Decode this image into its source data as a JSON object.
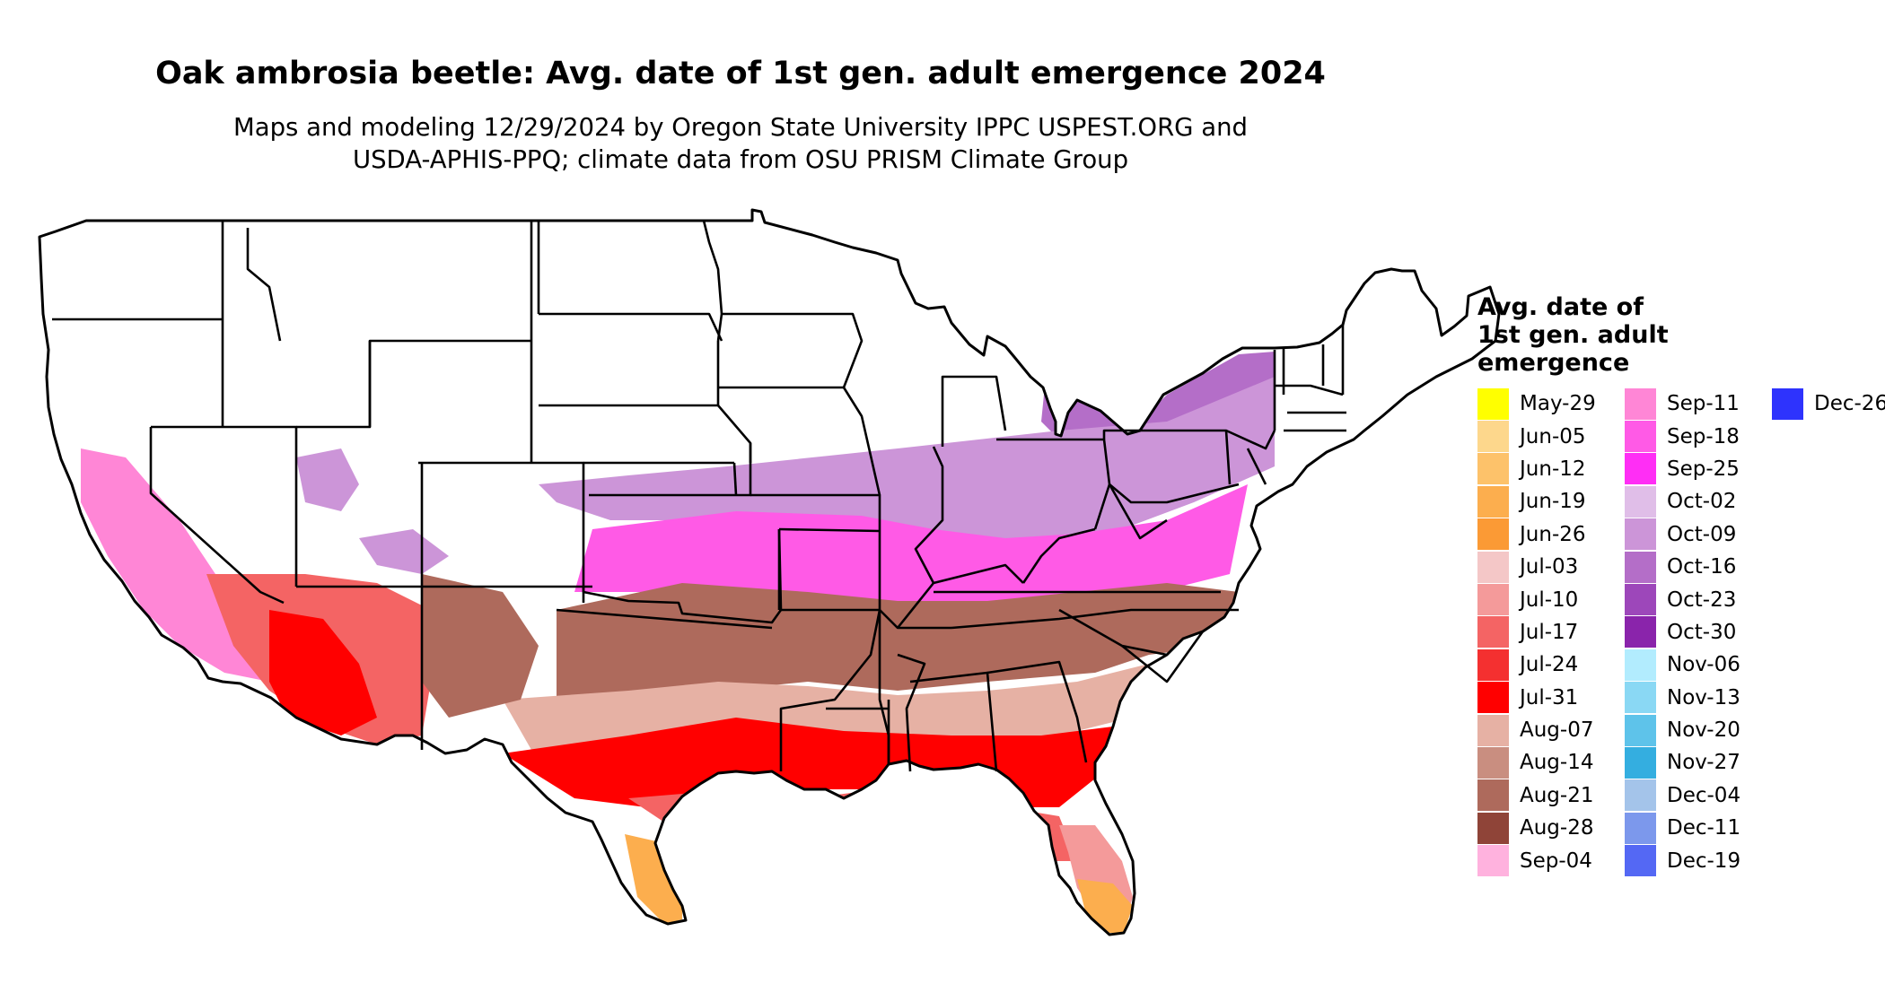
{
  "title": "Oak ambrosia beetle: Avg. date of 1st gen. adult emergence 2024",
  "subtitle_line1": "Maps and modeling 12/29/2024 by Oregon State University IPPC USPEST.ORG and",
  "subtitle_line2": "USDA-APHIS-PPQ; climate data from OSU PRISM Climate Group",
  "legend": {
    "title_lines": [
      "Avg. date of",
      "1st gen. adult",
      "emergence"
    ],
    "columns": [
      [
        {
          "label": "May-29",
          "color": "#ffff00"
        },
        {
          "label": "Jun-05",
          "color": "#fdd78c"
        },
        {
          "label": "Jun-12",
          "color": "#fdc26a"
        },
        {
          "label": "Jun-19",
          "color": "#fcae4e"
        },
        {
          "label": "Jun-26",
          "color": "#fb9a35"
        },
        {
          "label": "Jul-03",
          "color": "#f4c7c7"
        },
        {
          "label": "Jul-10",
          "color": "#f49a9a"
        },
        {
          "label": "Jul-17",
          "color": "#f46464"
        },
        {
          "label": "Jul-24",
          "color": "#f43030"
        },
        {
          "label": "Jul-31",
          "color": "#ff0000"
        },
        {
          "label": "Aug-07",
          "color": "#e6b1a4"
        },
        {
          "label": "Aug-14",
          "color": "#c98e80"
        },
        {
          "label": "Aug-21",
          "color": "#ae6a5c"
        },
        {
          "label": "Aug-28",
          "color": "#8f4438"
        },
        {
          "label": "Sep-04",
          "color": "#ffb2de"
        }
      ],
      [
        {
          "label": "Sep-11",
          "color": "#ff86d6"
        },
        {
          "label": "Sep-18",
          "color": "#ff5ae6"
        },
        {
          "label": "Sep-25",
          "color": "#ff2ef5"
        },
        {
          "label": "Oct-02",
          "color": "#e0bee8"
        },
        {
          "label": "Oct-09",
          "color": "#cc95d8"
        },
        {
          "label": "Oct-16",
          "color": "#b46ec8"
        },
        {
          "label": "Oct-23",
          "color": "#9d47ba"
        },
        {
          "label": "Oct-30",
          "color": "#8a24ab"
        },
        {
          "label": "Nov-06",
          "color": "#b2ecfe"
        },
        {
          "label": "Nov-13",
          "color": "#8ad8f4"
        },
        {
          "label": "Nov-20",
          "color": "#5ec3ea"
        },
        {
          "label": "Nov-27",
          "color": "#34aee0"
        },
        {
          "label": "Dec-04",
          "color": "#a4c4ea"
        },
        {
          "label": "Dec-11",
          "color": "#7c98ec"
        },
        {
          "label": "Dec-19",
          "color": "#5468f4"
        }
      ],
      [
        {
          "label": "Dec-26",
          "color": "#2e33fd"
        }
      ]
    ]
  }
}
